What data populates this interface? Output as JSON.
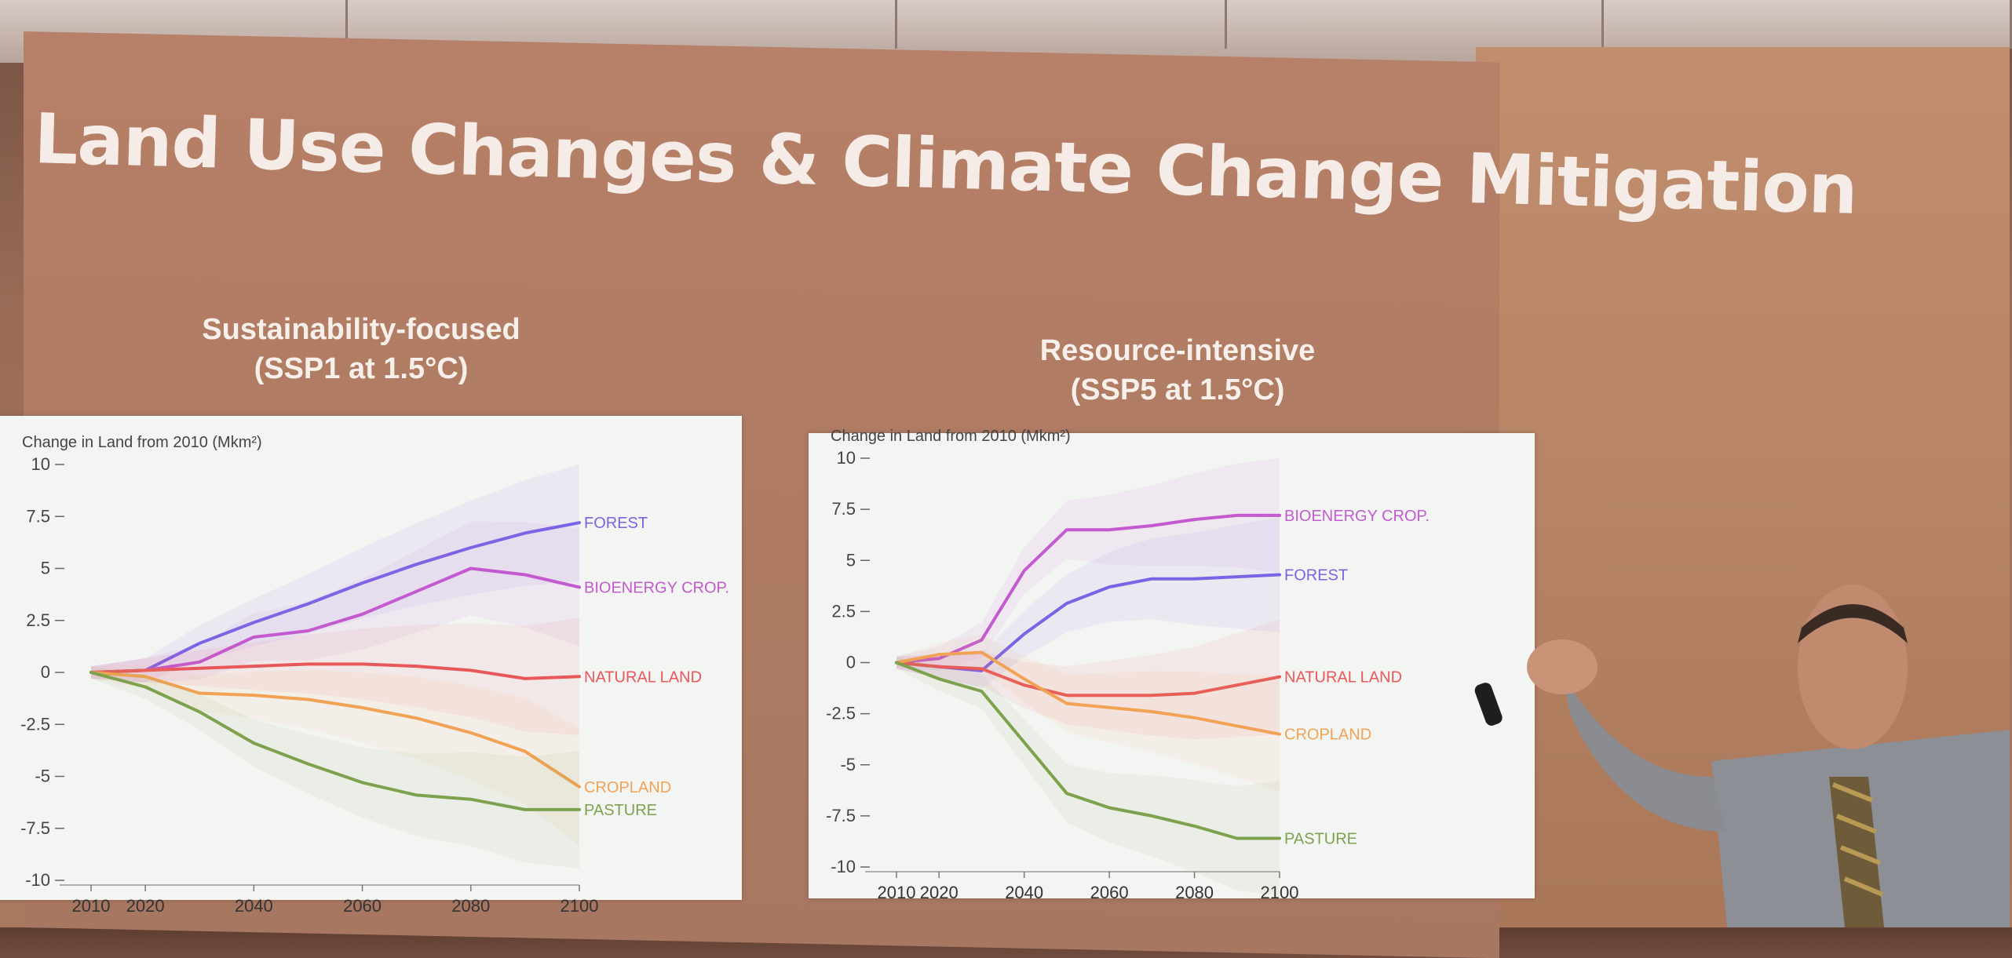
{
  "slide_title": "Land Use Changes & Climate Change Mitigation",
  "colors": {
    "FOREST": "#7b63e6",
    "BIOENERGY CROP.": "#c35ad0",
    "NATURAL LAND": "#e8585a",
    "CROPLAND": "#f2a255",
    "PASTURE": "#7ea14e"
  },
  "chart_data": [
    {
      "type": "line",
      "subtitle_line1": "Sustainability-focused",
      "subtitle_line2": "(SSP1 at 1.5°C)",
      "ylabel": "Change in Land from 2010 (Mkm²)",
      "ylim": [
        -10,
        10
      ],
      "xlim": [
        2010,
        2100
      ],
      "yticks": [
        "10",
        "7.5",
        "5",
        "2.5",
        "0",
        "-2.5",
        "-5",
        "-7.5",
        "-10"
      ],
      "ytick_values": [
        10,
        7.5,
        5,
        2.5,
        0,
        -2.5,
        -5,
        -7.5,
        -10
      ],
      "xticks": [
        "2010",
        "2020",
        "2040",
        "2060",
        "2080",
        "2100"
      ],
      "xtick_values": [
        2010,
        2020,
        2040,
        2060,
        2080,
        2100
      ],
      "x": [
        2010,
        2020,
        2030,
        2040,
        2050,
        2060,
        2070,
        2080,
        2090,
        2100
      ],
      "series": [
        {
          "name": "FOREST",
          "values": [
            0,
            0.1,
            1.4,
            2.4,
            3.3,
            4.3,
            5.2,
            6.0,
            6.7,
            7.2
          ]
        },
        {
          "name": "BIOENERGY CROP.",
          "values": [
            0,
            0.1,
            0.5,
            1.7,
            2.0,
            2.8,
            3.9,
            5.0,
            4.7,
            4.1
          ]
        },
        {
          "name": "NATURAL LAND",
          "values": [
            0,
            0.1,
            0.2,
            0.3,
            0.4,
            0.4,
            0.3,
            0.1,
            -0.3,
            -0.2
          ]
        },
        {
          "name": "CROPLAND",
          "values": [
            0,
            -0.2,
            -1.0,
            -1.1,
            -1.3,
            -1.7,
            -2.2,
            -2.9,
            -3.8,
            -5.5
          ]
        },
        {
          "name": "PASTURE",
          "values": [
            0,
            -0.7,
            -1.9,
            -3.4,
            -4.4,
            -5.3,
            -5.9,
            -6.1,
            -6.6,
            -6.6
          ]
        }
      ]
    },
    {
      "type": "line",
      "subtitle_line1": "Resource-intensive",
      "subtitle_line2": "(SSP5 at 1.5°C)",
      "ylabel": "Change in Land from 2010 (Mkm²)",
      "ylim": [
        -10,
        10
      ],
      "xlim": [
        2010,
        2100
      ],
      "yticks": [
        "10",
        "7.5",
        "5",
        "2.5",
        "0",
        "-2.5",
        "-5",
        "-7.5",
        "-10"
      ],
      "ytick_values": [
        10,
        7.5,
        5,
        2.5,
        0,
        -2.5,
        -5,
        -7.5,
        -10
      ],
      "xticks": [
        "2010",
        "2020",
        "2040",
        "2060",
        "2080",
        "2100"
      ],
      "xtick_values": [
        2010,
        2020,
        2040,
        2060,
        2080,
        2100
      ],
      "x": [
        2010,
        2020,
        2030,
        2040,
        2050,
        2060,
        2070,
        2080,
        2090,
        2100
      ],
      "series": [
        {
          "name": "BIOENERGY CROP.",
          "values": [
            0,
            0.2,
            1.1,
            4.5,
            6.5,
            6.5,
            6.7,
            7.0,
            7.2,
            7.2
          ]
        },
        {
          "name": "FOREST",
          "values": [
            0,
            -0.2,
            -0.4,
            1.4,
            2.9,
            3.7,
            4.1,
            4.1,
            4.2,
            4.3
          ]
        },
        {
          "name": "NATURAL LAND",
          "values": [
            0,
            -0.2,
            -0.3,
            -1.1,
            -1.6,
            -1.6,
            -1.6,
            -1.5,
            -1.1,
            -0.7
          ]
        },
        {
          "name": "CROPLAND",
          "values": [
            0,
            0.4,
            0.5,
            -0.8,
            -2.0,
            -2.2,
            -2.4,
            -2.7,
            -3.1,
            -3.5
          ]
        },
        {
          "name": "PASTURE",
          "values": [
            0,
            -0.8,
            -1.4,
            -3.9,
            -6.4,
            -7.1,
            -7.5,
            -8.0,
            -8.6,
            -8.6
          ]
        }
      ]
    }
  ]
}
